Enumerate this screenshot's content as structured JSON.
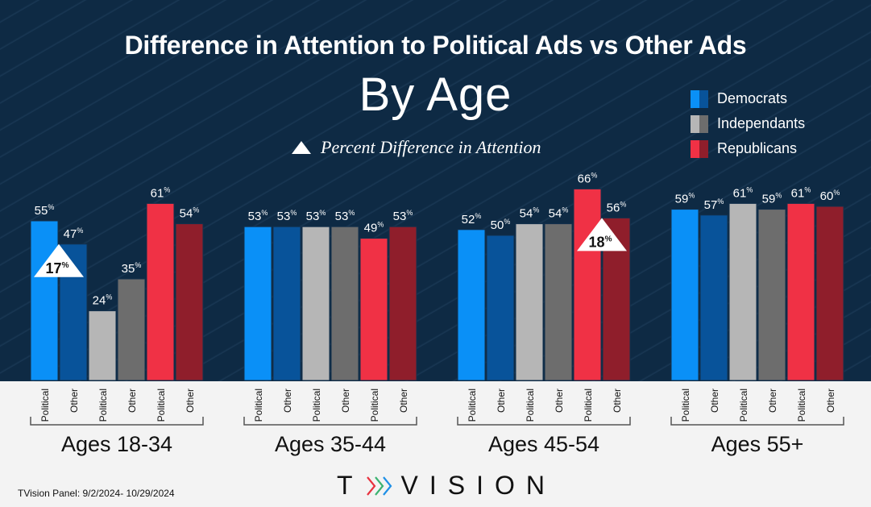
{
  "header": {
    "title": "Difference in Attention to Political Ads vs Other Ads",
    "subtitle": "By Age",
    "diff_legend_label": "Percent Difference in Attention"
  },
  "legend": [
    {
      "label": "Democrats",
      "colors": [
        "#0a90f7",
        "#08539a"
      ]
    },
    {
      "label": "Independants",
      "colors": [
        "#b6b6b6",
        "#6d6d6d"
      ]
    },
    {
      "label": "Republicans",
      "colors": [
        "#f03145",
        "#8f1e2b"
      ]
    }
  ],
  "footer": {
    "source": "TVision Panel:  9/2/2024- 10/29/2024",
    "logo_text_left": "T",
    "logo_text_right": "VISION"
  },
  "chart_data": {
    "type": "bar",
    "title": "Difference in Attention to Political Ads vs Other Ads",
    "subtitle": "By Age",
    "ylabel": "",
    "xlabel": "",
    "ylim": [
      0,
      70
    ],
    "grid": false,
    "legend_position": "top-right",
    "value_suffix": "%",
    "bar_labels": [
      "Political",
      "Other",
      "Political",
      "Other",
      "Political",
      "Other"
    ],
    "series_order": [
      "Democrats Political",
      "Democrats Other",
      "Independants Political",
      "Independants Other",
      "Republicans Political",
      "Republicans Other"
    ],
    "bar_colors": [
      "#0a90f7",
      "#08539a",
      "#b6b6b6",
      "#6d6d6d",
      "#f03145",
      "#8f1e2b"
    ],
    "categories": [
      "Ages 18-34",
      "Ages 35-44",
      "Ages 45-54",
      "Ages 55+"
    ],
    "groups": [
      {
        "category": "Ages 18-34",
        "values": [
          55,
          47,
          24,
          35,
          61,
          54
        ],
        "annotation": {
          "value": "17%",
          "pair": 0
        }
      },
      {
        "category": "Ages 35-44",
        "values": [
          53,
          53,
          53,
          53,
          49,
          53
        ]
      },
      {
        "category": "Ages 45-54",
        "values": [
          52,
          50,
          54,
          54,
          66,
          56
        ],
        "annotation": {
          "value": "18%",
          "pair": 2
        }
      },
      {
        "category": "Ages 55+",
        "values": [
          59,
          57,
          61,
          59,
          61,
          60
        ]
      }
    ]
  }
}
